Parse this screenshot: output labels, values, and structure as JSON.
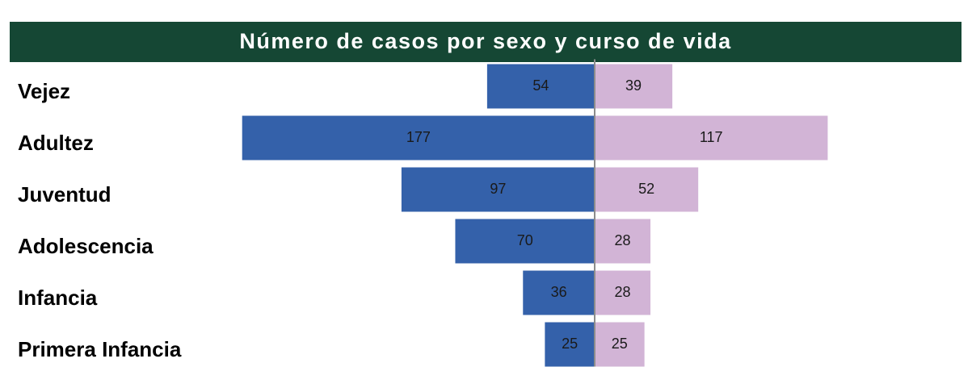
{
  "chart_data": {
    "type": "butterfly-bar",
    "title": "Número de casos por sexo y curso de vida",
    "categories": [
      "Vejez",
      "Adultez",
      "Juventud",
      "Adolescencia",
      "Infancia",
      "Primera Infancia"
    ],
    "series": [
      {
        "color": "#3461aa",
        "values": [
          54,
          177,
          97,
          70,
          36,
          25
        ]
      },
      {
        "color": "#d2b4d6",
        "values": [
          39,
          117,
          52,
          28,
          28,
          25
        ]
      }
    ],
    "xlim": [
      0,
      180
    ]
  }
}
